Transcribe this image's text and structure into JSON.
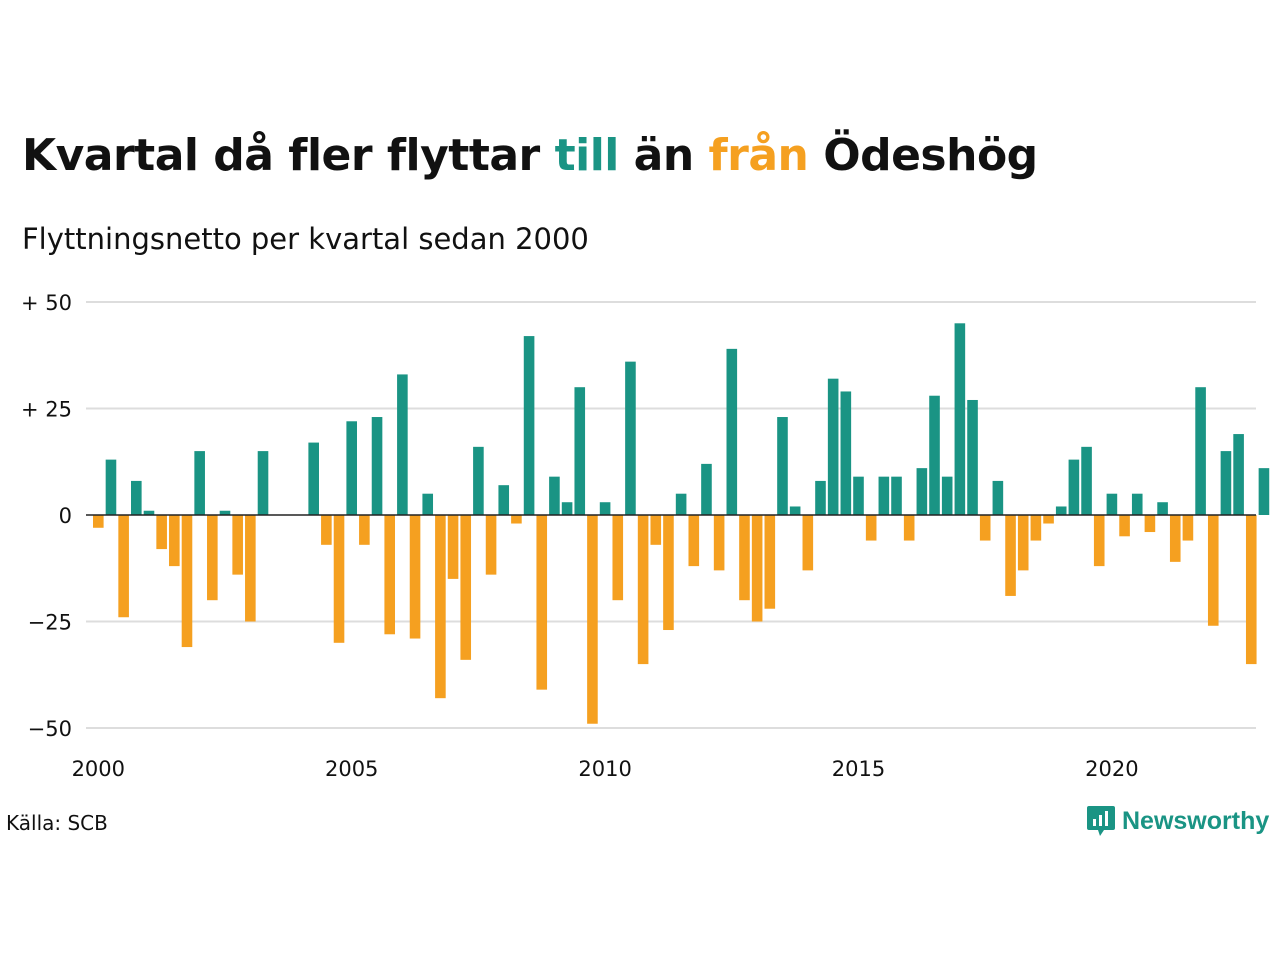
{
  "title": {
    "part1": "Kvartal då fler flyttar ",
    "till": "till",
    "part2": " än ",
    "fran": "från",
    "part3": " Ödeshög"
  },
  "subtitle": "Flyttningsnetto per kvartal sedan 2000",
  "source": "Källa: SCB",
  "brand": "Newsworthy",
  "colors": {
    "positive": "#1a9484",
    "negative": "#f5a020",
    "grid": "#dddddd",
    "axis": "#222222"
  },
  "chart_data": {
    "type": "bar",
    "title": "Kvartal då fler flyttar till än från Ödeshög",
    "subtitle": "Flyttningsnetto per kvartal sedan 2000",
    "start": {
      "year": 2000,
      "quarter": 1
    },
    "x_ticks": [
      "2000",
      "2005",
      "2010",
      "2015",
      "2020"
    ],
    "y_ticks": [
      {
        "value": 50,
        "label": "+ 50"
      },
      {
        "value": 25,
        "label": "+ 25"
      },
      {
        "value": 0,
        "label": "0"
      },
      {
        "value": -25,
        "label": "−25"
      },
      {
        "value": -50,
        "label": "−50"
      }
    ],
    "ylim": [
      -50,
      50
    ],
    "grid": true,
    "values": [
      -3,
      13,
      -24,
      8,
      1,
      -8,
      -12,
      -31,
      15,
      -20,
      1,
      -14,
      -25,
      15,
      0,
      0,
      0,
      17,
      -7,
      -30,
      22,
      -7,
      23,
      -28,
      33,
      -29,
      5,
      -43,
      -15,
      -34,
      16,
      -14,
      7,
      -2,
      42,
      -41,
      9,
      3,
      30,
      -49,
      3,
      -20,
      36,
      -35,
      -7,
      -27,
      5,
      -12,
      12,
      -13,
      39,
      -20,
      -25,
      -22,
      23,
      2,
      -13,
      8,
      32,
      29,
      9,
      -6,
      9,
      9,
      -6,
      11,
      28,
      9,
      45,
      27,
      -6,
      8,
      -19,
      -13,
      -6,
      -2,
      2,
      13,
      16,
      -12,
      5,
      -5,
      5,
      -4,
      3,
      -11,
      -6,
      30,
      -26,
      15,
      19,
      -35,
      11
    ]
  }
}
